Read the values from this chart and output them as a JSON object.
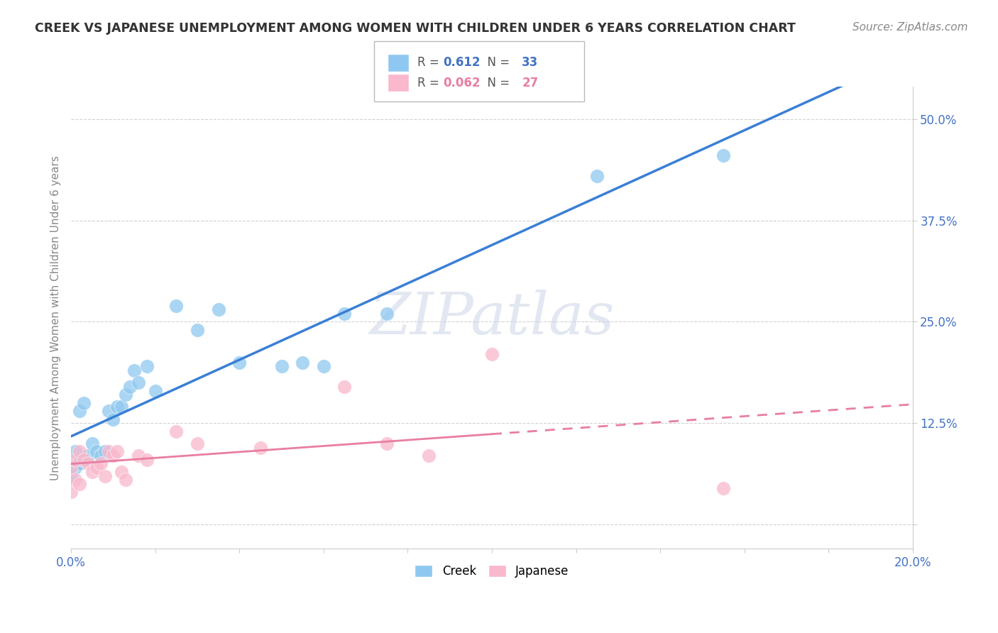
{
  "title": "CREEK VS JAPANESE UNEMPLOYMENT AMONG WOMEN WITH CHILDREN UNDER 6 YEARS CORRELATION CHART",
  "source": "Source: ZipAtlas.com",
  "ylabel": "Unemployment Among Women with Children Under 6 years",
  "xlim": [
    0.0,
    0.2
  ],
  "ylim": [
    -0.03,
    0.54
  ],
  "yticks": [
    0.0,
    0.125,
    0.25,
    0.375,
    0.5
  ],
  "ytick_labels": [
    "",
    "12.5%",
    "25.0%",
    "37.5%",
    "50.0%"
  ],
  "xticks": [
    0.0,
    0.02,
    0.04,
    0.06,
    0.08,
    0.1,
    0.12,
    0.14,
    0.16,
    0.18,
    0.2
  ],
  "xtick_labels": [
    "0.0%",
    "",
    "",
    "",
    "",
    "",
    "",
    "",
    "",
    "",
    "20.0%"
  ],
  "creek_R": 0.612,
  "creek_N": 33,
  "japanese_R": 0.062,
  "japanese_N": 27,
  "creek_color": "#8ec8f0",
  "japanese_color": "#f9b8cc",
  "creek_line_color": "#3a7fd5",
  "japanese_line_color": "#e87ea0",
  "watermark": "ZIPatlas",
  "creek_x": [
    0.0,
    0.001,
    0.001,
    0.002,
    0.002,
    0.003,
    0.003,
    0.004,
    0.005,
    0.006,
    0.007,
    0.008,
    0.009,
    0.01,
    0.011,
    0.012,
    0.013,
    0.014,
    0.015,
    0.016,
    0.018,
    0.02,
    0.025,
    0.03,
    0.035,
    0.04,
    0.05,
    0.055,
    0.06,
    0.065,
    0.075,
    0.125,
    0.155
  ],
  "creek_y": [
    0.06,
    0.07,
    0.09,
    0.075,
    0.14,
    0.08,
    0.15,
    0.085,
    0.1,
    0.09,
    0.085,
    0.09,
    0.14,
    0.13,
    0.145,
    0.145,
    0.16,
    0.17,
    0.19,
    0.175,
    0.195,
    0.165,
    0.27,
    0.24,
    0.265,
    0.2,
    0.195,
    0.2,
    0.195,
    0.26,
    0.26,
    0.43,
    0.455
  ],
  "japanese_x": [
    0.0,
    0.0,
    0.001,
    0.001,
    0.002,
    0.002,
    0.003,
    0.004,
    0.005,
    0.006,
    0.007,
    0.008,
    0.009,
    0.01,
    0.011,
    0.012,
    0.013,
    0.016,
    0.018,
    0.025,
    0.03,
    0.045,
    0.065,
    0.075,
    0.085,
    0.1,
    0.155
  ],
  "japanese_y": [
    0.04,
    0.07,
    0.055,
    0.08,
    0.05,
    0.09,
    0.08,
    0.075,
    0.065,
    0.07,
    0.075,
    0.06,
    0.09,
    0.085,
    0.09,
    0.065,
    0.055,
    0.085,
    0.08,
    0.115,
    0.1,
    0.095,
    0.17,
    0.1,
    0.085,
    0.21,
    0.045
  ]
}
